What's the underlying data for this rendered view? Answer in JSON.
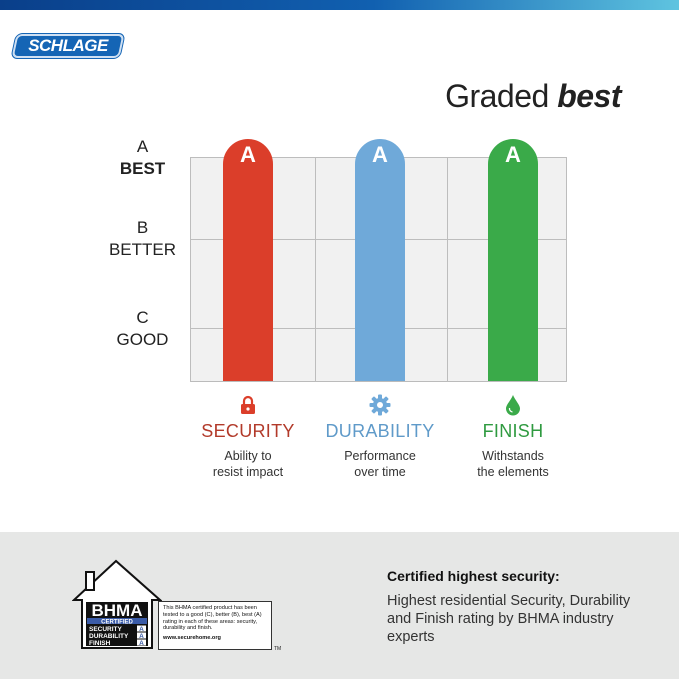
{
  "brand": {
    "logo": "SCHLAGE"
  },
  "title": {
    "normal": "Graded ",
    "bold": "best"
  },
  "grades": [
    {
      "letter": "A",
      "label": "BEST"
    },
    {
      "letter": "B",
      "label": "BETTER"
    },
    {
      "letter": "C",
      "label": "GOOD"
    }
  ],
  "bars": [
    {
      "grade": "A",
      "name": "SECURITY",
      "desc1": "Ability to",
      "desc2": "resist impact",
      "color": "#db3e2a",
      "text_color": "#b23a2a",
      "icon": "lock-icon"
    },
    {
      "grade": "A",
      "name": "DURABILITY",
      "desc1": "Performance",
      "desc2": "over time",
      "color": "#6fa9d9",
      "text_color": "#5f9ac9",
      "icon": "gear-icon"
    },
    {
      "grade": "A",
      "name": "FINISH",
      "desc1": "Withstands",
      "desc2": "the elements",
      "color": "#3aaa49",
      "text_color": "#2f9a40",
      "icon": "droplet-icon"
    }
  ],
  "bhma": {
    "logo": "BHMA",
    "certified": "CERTIFIED",
    "rows": [
      {
        "label": "SECURITY",
        "grade": "A"
      },
      {
        "label": "DURABILITY",
        "grade": "A"
      },
      {
        "label": "FINISH",
        "grade": "A"
      }
    ],
    "info": "This BHMA certified product has been tested to a good (C), better (B), best (A) rating in each of these areas: security, durability and finish.",
    "url": "www.securehome.org",
    "tm": "TM"
  },
  "certified": {
    "heading": "Certified highest security:",
    "body": "Highest residential Security, Durability and Finish rating by BHMA industry experts"
  }
}
